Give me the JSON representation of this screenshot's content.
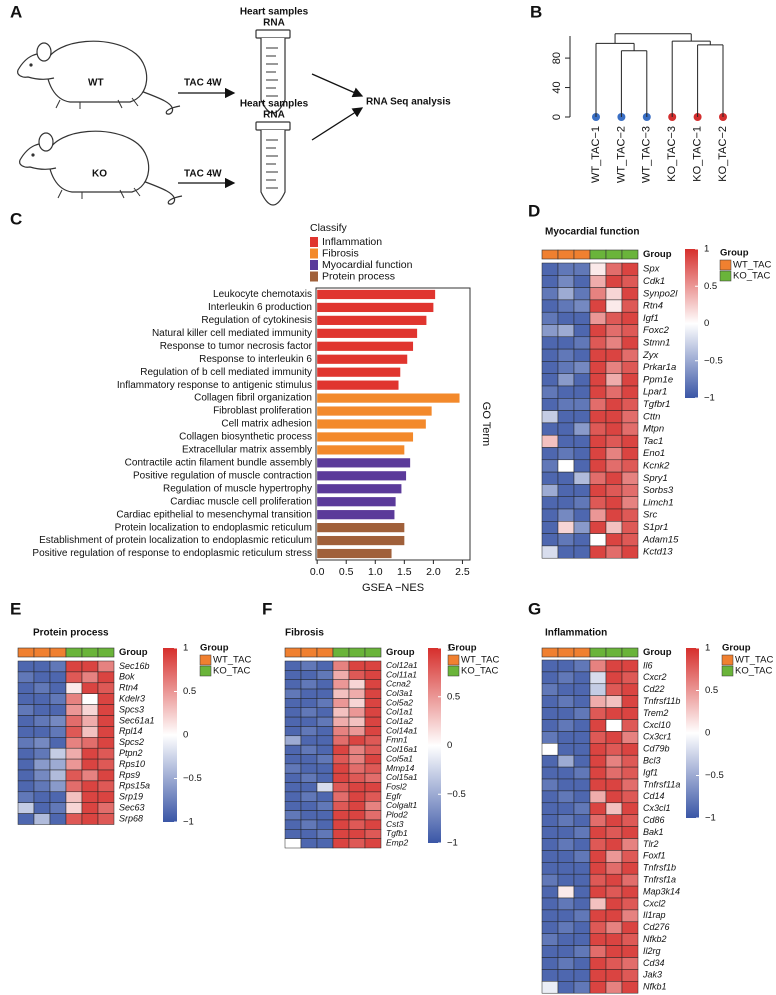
{
  "diagram": {
    "panel": "A",
    "groups": [
      {
        "name": "WT",
        "treatment": "TAC 4W",
        "sample": [
          "Heart samples",
          "RNA"
        ]
      },
      {
        "name": "KO",
        "treatment": "TAC 4W",
        "sample": [
          "Heart samples",
          "RNA"
        ]
      }
    ],
    "result": "RNA Seq analysis"
  },
  "chart_data": [
    {
      "type": "dendrogram",
      "panel": "B",
      "ylim": [
        0,
        110
      ],
      "yticks": [
        0,
        40,
        80
      ],
      "tree": {
        "height": 113,
        "children": [
          {
            "height": 100,
            "children": [
              {
                "name": "WT_TAC−1",
                "color": "#3a6fc4"
              },
              {
                "height": 90,
                "children": [
                  {
                    "name": "WT_TAC−2",
                    "color": "#3a6fc4"
                  },
                  {
                    "name": "WT_TAC−3",
                    "color": "#3a6fc4"
                  }
                ]
              }
            ]
          },
          {
            "height": 103,
            "children": [
              {
                "name": "KO_TAC−3",
                "color": "#d32f2f"
              },
              {
                "height": 98,
                "children": [
                  {
                    "name": "KO_TAC−1",
                    "color": "#d32f2f"
                  },
                  {
                    "name": "KO_TAC−2",
                    "color": "#d32f2f"
                  }
                ]
              }
            ]
          }
        ]
      }
    },
    {
      "type": "bar",
      "panel": "C",
      "legend_title": "Classify",
      "xlabel": "GSEA −NES",
      "ylabel": "GO Term",
      "xlim": [
        -0.02,
        2.63
      ],
      "xticks": [
        {
          "value": 0,
          "label": "0.0"
        },
        0.5,
        {
          "value": 1,
          "label": "1.0"
        },
        1.5,
        {
          "value": 2,
          "label": "2.0"
        },
        2.5
      ],
      "series": [
        {
          "name": "Inflammation",
          "color": "#e0352f",
          "categories": [
            "Leukocyte chemotaxis",
            "Interleukin 6 production",
            "Regulation of cytokinesis",
            "Natural killer cell mediated immunity",
            "Response to tumor necrosis factor",
            "Response to interleukin 6",
            "Regulation of b cell mediated immunity",
            "Inflammatory response to antigenic stimulus"
          ],
          "values": [
            2.03,
            2.0,
            1.88,
            1.72,
            1.65,
            1.55,
            1.43,
            1.4
          ]
        },
        {
          "name": "Fibrosis",
          "color": "#f3892b",
          "categories": [
            "Collagen fibril organization",
            "Fibroblast proliferation",
            "Cell matrix adhesion",
            "Collagen biosynthetic process",
            "Extracellular matrix assembly"
          ],
          "values": [
            2.45,
            1.97,
            1.87,
            1.65,
            1.5
          ]
        },
        {
          "name": "Myocardial function",
          "color": "#5b3a9a",
          "categories": [
            "Contractile actin filament bundle assembly",
            "Positive regulation of muscle contraction",
            "Regulation of muscle hypertrophy",
            "Cardiac muscle cell proliferation",
            "Cardiac epithelial to mesenchymal transition"
          ],
          "values": [
            1.6,
            1.53,
            1.45,
            1.35,
            1.33
          ]
        },
        {
          "name": "Protein process",
          "color": "#a0603a",
          "categories": [
            "Protein localization to endoplasmic reticulum",
            "Establishment of protein localization to endoplasmic reticulum",
            "Positive regulation of response to endoplasmic reticulum stress"
          ],
          "values": [
            1.5,
            1.5,
            1.28
          ]
        }
      ]
    },
    {
      "type": "heatmap",
      "panel": "D",
      "title": "Myocardial function",
      "annotation_label": "Group",
      "legend_title": "Group",
      "groups": [
        {
          "name": "WT_TAC",
          "color": "#f08030",
          "columns": 3
        },
        {
          "name": "KO_TAC",
          "color": "#6ab43a",
          "columns": 3
        }
      ],
      "clim": [
        -1,
        1
      ],
      "colors": [
        "#3a56a6",
        "#ffffff",
        "#d62f2c"
      ],
      "cticks": [
        1,
        0.5,
        0,
        {
          "value": -0.5,
          "label": "−0.5"
        },
        {
          "value": -1,
          "label": "−1"
        }
      ],
      "rows": [
        "Spx",
        "Cdk1",
        "Synpo2l",
        "Rtn4",
        "Igf1",
        "Foxc2",
        "Stmn1",
        "Zyx",
        "Prkar1a",
        "Ppm1e",
        "Lpar1",
        "Tgfbr1",
        "Cttn",
        "Mtpn",
        "Tac1",
        "Eno1",
        "Kcnk2",
        "Spry1",
        "Sorbs3",
        "Limch1",
        "Src",
        "S1pr1",
        "Adam15",
        "Kctd13"
      ],
      "values": [
        [
          -0.9,
          -0.8,
          -0.8,
          0.1,
          0.7,
          0.9
        ],
        [
          -0.9,
          -0.7,
          -0.9,
          0.4,
          0.9,
          0.8
        ],
        [
          -0.8,
          -0.5,
          -0.8,
          0.6,
          0.2,
          0.9
        ],
        [
          -0.9,
          -0.8,
          -0.7,
          0.9,
          0.1,
          0.8
        ],
        [
          -0.8,
          -0.9,
          -0.9,
          0.5,
          0.8,
          0.9
        ],
        [
          -0.6,
          -0.5,
          -0.9,
          0.9,
          0.7,
          0.8
        ],
        [
          -0.9,
          -0.9,
          -0.8,
          0.8,
          0.6,
          0.9
        ],
        [
          -0.9,
          -0.8,
          -0.9,
          0.9,
          0.9,
          0.7
        ],
        [
          -0.9,
          -0.8,
          -0.7,
          0.9,
          0.6,
          0.8
        ],
        [
          -0.9,
          -0.6,
          -0.9,
          0.9,
          0.4,
          0.9
        ],
        [
          -0.8,
          -0.9,
          -0.9,
          0.9,
          0.7,
          0.9
        ],
        [
          -0.9,
          -0.8,
          -0.8,
          0.7,
          0.9,
          0.8
        ],
        [
          -0.3,
          -0.9,
          -0.9,
          0.9,
          0.9,
          0.7
        ],
        [
          -0.9,
          -0.9,
          -0.6,
          0.8,
          0.9,
          0.7
        ],
        [
          0.3,
          -0.9,
          -0.9,
          0.9,
          0.8,
          0.9
        ],
        [
          -0.9,
          -0.8,
          -0.9,
          0.9,
          0.6,
          0.9
        ],
        [
          -0.8,
          0.0,
          -0.9,
          0.9,
          0.7,
          0.8
        ],
        [
          -0.9,
          -0.9,
          -0.4,
          0.7,
          0.9,
          0.6
        ],
        [
          -0.5,
          -0.9,
          -0.9,
          0.9,
          0.8,
          0.7
        ],
        [
          -0.9,
          -0.9,
          -0.8,
          0.8,
          0.9,
          0.6
        ],
        [
          -0.9,
          -0.7,
          -0.9,
          0.5,
          0.9,
          0.8
        ],
        [
          -0.9,
          0.2,
          -0.6,
          0.9,
          0.3,
          0.8
        ],
        [
          -0.9,
          -0.8,
          -0.9,
          0.0,
          0.9,
          0.8
        ],
        [
          -0.2,
          -0.9,
          -0.9,
          0.9,
          0.7,
          0.9
        ]
      ]
    },
    {
      "type": "heatmap",
      "panel": "E",
      "title": "Protein process",
      "annotation_label": "Group",
      "legend_title": "Group",
      "groups": [
        {
          "name": "WT_TAC",
          "color": "#f08030",
          "columns": 3
        },
        {
          "name": "KO_TAC",
          "color": "#6ab43a",
          "columns": 3
        }
      ],
      "clim": [
        -1,
        1
      ],
      "colors": [
        "#3a56a6",
        "#ffffff",
        "#d62f2c"
      ],
      "cticks": [
        1,
        0.5,
        0,
        {
          "value": -0.5,
          "label": "−0.5"
        },
        {
          "value": -1,
          "label": "−1"
        }
      ],
      "rows": [
        "Sec16b",
        "Bok",
        "Rtn4",
        "Kdelr3",
        "Spcs3",
        "Sec61a1",
        "Rpl14",
        "Spcs2",
        "Ptpn2",
        "Rps10",
        "Rps9",
        "Rps15a",
        "Srp19",
        "Sec63",
        "Srp68"
      ],
      "values": [
        [
          -0.9,
          -0.9,
          -0.8,
          0.9,
          0.9,
          0.6
        ],
        [
          -0.8,
          -0.9,
          -0.9,
          0.8,
          0.6,
          0.9
        ],
        [
          -0.9,
          -0.8,
          -0.9,
          0.1,
          0.9,
          0.8
        ],
        [
          -0.9,
          -0.9,
          -0.8,
          0.6,
          0.0,
          0.9
        ],
        [
          -0.8,
          -0.9,
          -0.9,
          0.5,
          0.2,
          0.9
        ],
        [
          -0.9,
          -0.8,
          -0.7,
          0.7,
          0.4,
          0.9
        ],
        [
          -0.9,
          -0.9,
          -0.8,
          0.8,
          0.3,
          0.9
        ],
        [
          -0.8,
          -0.7,
          -0.9,
          0.6,
          0.7,
          0.9
        ],
        [
          -0.9,
          -0.8,
          -0.3,
          0.4,
          0.9,
          0.8
        ],
        [
          -0.9,
          -0.6,
          -0.5,
          0.5,
          0.9,
          0.8
        ],
        [
          -0.9,
          -0.7,
          -0.4,
          0.8,
          0.6,
          0.9
        ],
        [
          -0.9,
          -0.8,
          -0.6,
          0.7,
          0.9,
          0.8
        ],
        [
          -0.8,
          -0.9,
          -0.9,
          0.3,
          0.9,
          0.9
        ],
        [
          -0.3,
          -0.9,
          -0.8,
          0.2,
          0.9,
          0.7
        ],
        [
          -0.9,
          -0.4,
          -0.9,
          0.8,
          0.9,
          0.8
        ]
      ]
    },
    {
      "type": "heatmap",
      "panel": "F",
      "title": "Fibrosis",
      "annotation_label": "Group",
      "legend_title": "Group",
      "groups": [
        {
          "name": "WT_TAC",
          "color": "#f08030",
          "columns": 3
        },
        {
          "name": "KO_TAC",
          "color": "#6ab43a",
          "columns": 3
        }
      ],
      "clim": [
        -1,
        1
      ],
      "colors": [
        "#3a56a6",
        "#ffffff",
        "#d62f2c"
      ],
      "cticks": [
        1,
        0.5,
        0,
        {
          "value": -0.5,
          "label": "−0.5"
        },
        {
          "value": -1,
          "label": "−1"
        }
      ],
      "rows": [
        "Col12a1",
        "Col11a1",
        "Ccna2",
        "Col3a1",
        "Col5a2",
        "Col1a1",
        "Col1a2",
        "Col14a1",
        "Fmn1",
        "Col16a1",
        "Col5a1",
        "Mmp14",
        "Col15a1",
        "Fosl2",
        "Egfr",
        "Colgalt1",
        "Plod2",
        "Cst3",
        "Tgfb1",
        "Emp2"
      ],
      "values": [
        [
          -0.9,
          -0.8,
          -0.9,
          0.6,
          0.9,
          0.9
        ],
        [
          -0.9,
          -0.9,
          -0.8,
          0.4,
          0.8,
          0.9
        ],
        [
          -0.9,
          -0.8,
          -0.9,
          0.5,
          0.2,
          0.9
        ],
        [
          -0.8,
          -0.9,
          -0.9,
          0.3,
          0.4,
          0.9
        ],
        [
          -0.9,
          -0.9,
          -0.8,
          0.5,
          0.2,
          0.9
        ],
        [
          -0.9,
          -0.8,
          -0.9,
          0.3,
          0.5,
          0.9
        ],
        [
          -0.9,
          -0.9,
          -0.8,
          0.4,
          0.3,
          0.9
        ],
        [
          -0.9,
          -0.8,
          -0.9,
          0.6,
          0.5,
          0.9
        ],
        [
          -0.5,
          -0.9,
          -0.9,
          0.7,
          0.9,
          0.8
        ],
        [
          -0.9,
          -0.8,
          -0.9,
          0.9,
          0.6,
          0.8
        ],
        [
          -0.9,
          -0.9,
          -0.8,
          0.8,
          0.6,
          0.9
        ],
        [
          -0.8,
          -0.9,
          -0.9,
          0.9,
          0.7,
          0.8
        ],
        [
          -0.9,
          -0.8,
          -0.9,
          0.9,
          0.8,
          0.7
        ],
        [
          -0.9,
          -0.9,
          -0.2,
          0.8,
          0.9,
          0.9
        ],
        [
          -0.9,
          -0.8,
          -0.9,
          0.7,
          0.9,
          0.8
        ],
        [
          -0.9,
          -0.9,
          -0.8,
          0.8,
          0.9,
          0.6
        ],
        [
          -0.8,
          -0.9,
          -0.9,
          0.9,
          0.9,
          0.7
        ],
        [
          -0.9,
          -0.8,
          -0.9,
          0.9,
          0.8,
          0.9
        ],
        [
          -0.9,
          -0.9,
          -0.8,
          0.9,
          0.9,
          0.8
        ],
        [
          0.0,
          -0.9,
          -0.9,
          0.9,
          0.8,
          0.9
        ]
      ]
    },
    {
      "type": "heatmap",
      "panel": "G",
      "title": "Inflammation",
      "annotation_label": "Group",
      "legend_title": "Group",
      "groups": [
        {
          "name": "WT_TAC",
          "color": "#f08030",
          "columns": 3
        },
        {
          "name": "KO_TAC",
          "color": "#6ab43a",
          "columns": 3
        }
      ],
      "clim": [
        -1,
        1
      ],
      "colors": [
        "#3a56a6",
        "#ffffff",
        "#d62f2c"
      ],
      "cticks": [
        1,
        0.5,
        0,
        {
          "value": -0.5,
          "label": "−0.5"
        },
        {
          "value": -1,
          "label": "−1"
        }
      ],
      "rows": [
        "Il6",
        "Cxcr2",
        "Cd22",
        "Tnfrsf11b",
        "Trem2",
        "Cxcl10",
        "Cx3cr1",
        "Cd79b",
        "Bcl3",
        "Igf1",
        "Tnfrsf11a",
        "Cd14",
        "Cx3cl1",
        "Cd86",
        "Bak1",
        "Tlr2",
        "Foxf1",
        "Tnfrsf1b",
        "Tnfrsf1a",
        "Map3k14",
        "Cxcl2",
        "Il1rap",
        "Cd276",
        "Nfkb2",
        "Il2rg",
        "Cd34",
        "Jak3",
        "Nfkb1"
      ],
      "values": [
        [
          -0.9,
          -0.9,
          -0.8,
          0.6,
          0.9,
          0.9
        ],
        [
          -0.9,
          -0.8,
          -0.9,
          -0.2,
          0.9,
          0.8
        ],
        [
          -0.8,
          -0.9,
          -0.9,
          -0.3,
          0.8,
          0.9
        ],
        [
          -0.9,
          -0.8,
          -0.9,
          0.4,
          0.3,
          0.9
        ],
        [
          -0.9,
          -0.9,
          -0.8,
          0.8,
          0.9,
          0.9
        ],
        [
          -0.9,
          -0.8,
          -0.9,
          0.9,
          0.0,
          0.8
        ],
        [
          -0.8,
          -0.9,
          -0.9,
          0.8,
          0.9,
          0.6
        ],
        [
          0.0,
          -0.9,
          -0.9,
          0.9,
          0.8,
          0.9
        ],
        [
          -0.9,
          -0.5,
          -0.9,
          0.9,
          0.6,
          0.8
        ],
        [
          -0.9,
          -0.9,
          -0.8,
          0.9,
          0.7,
          0.8
        ],
        [
          -0.8,
          -0.9,
          -0.9,
          0.9,
          0.9,
          0.7
        ],
        [
          -0.9,
          -0.8,
          -0.9,
          0.4,
          0.9,
          0.8
        ],
        [
          -0.9,
          -0.9,
          -0.8,
          0.9,
          0.3,
          0.9
        ],
        [
          -0.9,
          -0.8,
          -0.9,
          0.7,
          0.9,
          0.8
        ],
        [
          -0.9,
          -0.9,
          -0.8,
          0.9,
          0.8,
          0.9
        ],
        [
          -0.9,
          -0.8,
          -0.9,
          0.8,
          0.9,
          0.6
        ],
        [
          -0.9,
          -0.9,
          -0.8,
          0.9,
          0.5,
          0.8
        ],
        [
          -0.9,
          -0.9,
          -0.9,
          0.9,
          0.7,
          0.9
        ],
        [
          -0.8,
          -0.9,
          -0.9,
          0.8,
          0.9,
          0.7
        ],
        [
          -0.9,
          0.1,
          -0.9,
          0.9,
          0.8,
          0.9
        ],
        [
          -0.9,
          -0.8,
          -0.9,
          0.3,
          0.9,
          0.8
        ],
        [
          -0.9,
          -0.9,
          -0.8,
          0.9,
          0.9,
          0.6
        ],
        [
          -0.9,
          -0.8,
          -0.9,
          0.8,
          0.6,
          0.9
        ],
        [
          -0.8,
          -0.9,
          -0.9,
          0.9,
          0.9,
          0.8
        ],
        [
          -0.9,
          -0.9,
          -0.8,
          0.7,
          0.9,
          0.9
        ],
        [
          -0.9,
          -0.8,
          -0.9,
          0.9,
          0.8,
          0.7
        ],
        [
          -0.9,
          -0.9,
          -0.9,
          0.9,
          0.9,
          0.8
        ],
        [
          -0.1,
          -0.9,
          -0.8,
          0.9,
          0.6,
          0.9
        ]
      ]
    }
  ]
}
